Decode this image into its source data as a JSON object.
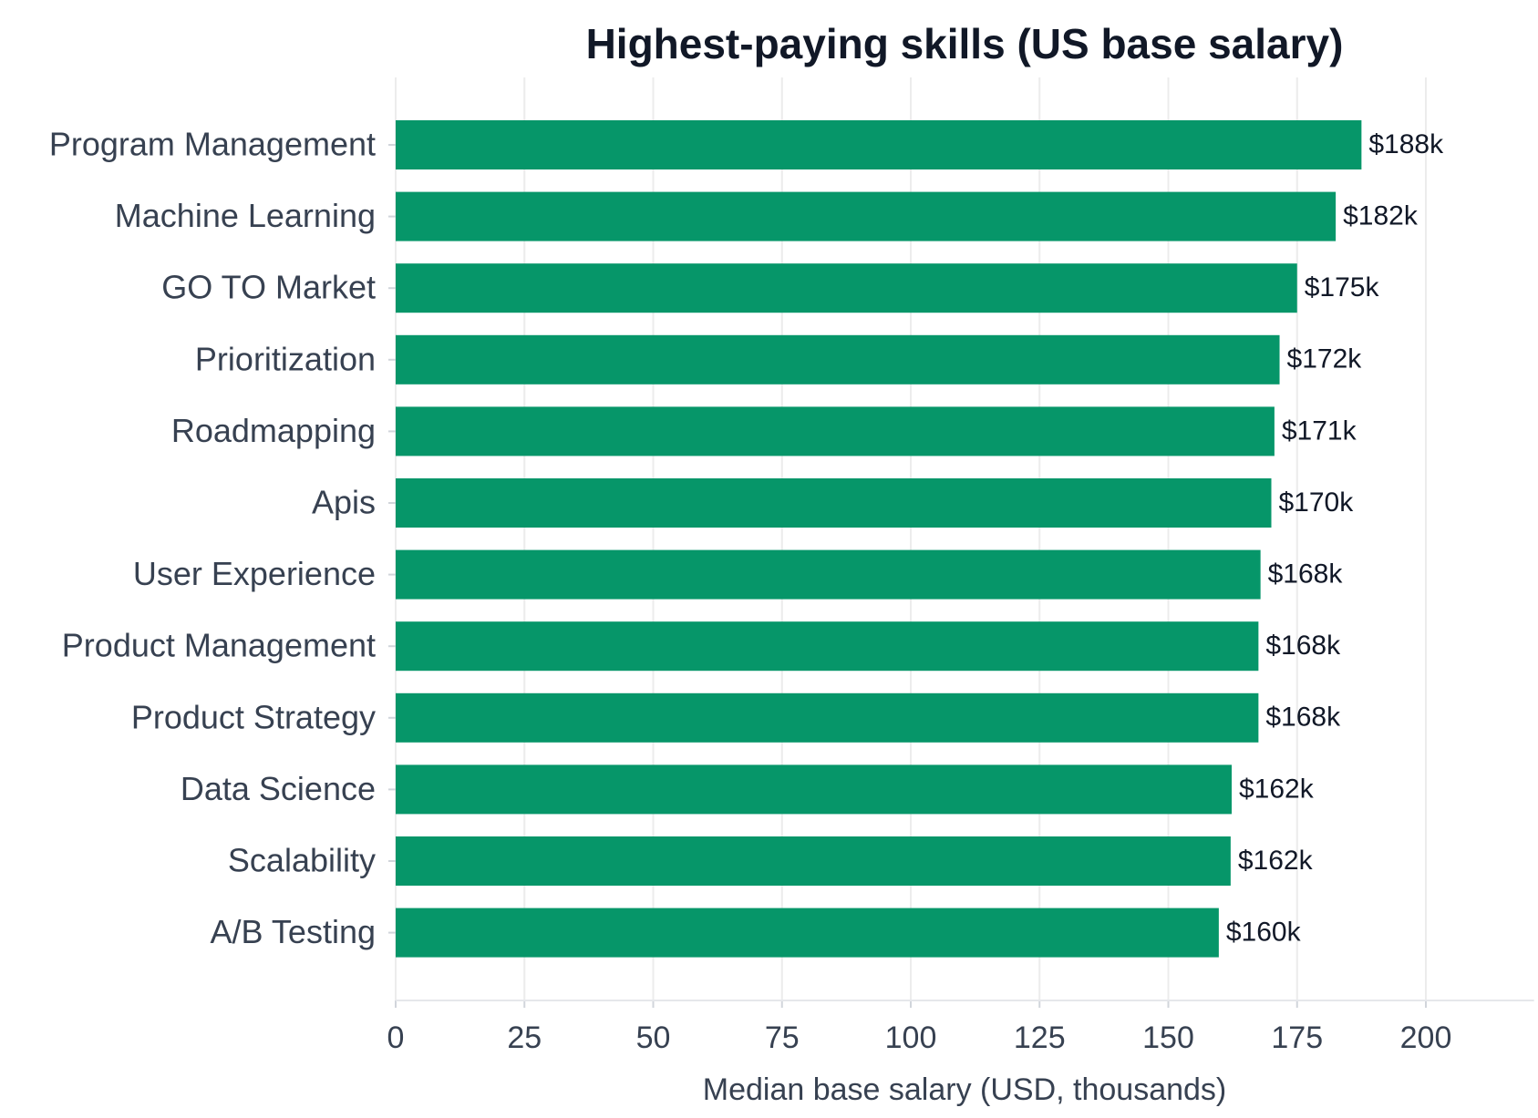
{
  "chart_data": {
    "type": "barh",
    "title": "Highest-paying skills (US base salary)",
    "x_label": "Median base salary (USD, thousands)",
    "categories": [
      "Program Management",
      "Machine Learning",
      "GO TO Market",
      "Prioritization",
      "Roadmapping",
      "Apis",
      "User Experience",
      "Product Management",
      "Product Strategy",
      "Data Science",
      "Scalability",
      "A/B Testing"
    ],
    "values": [
      187.5,
      182.5,
      175.0,
      171.6,
      170.6,
      170.0,
      167.9,
      167.5,
      167.5,
      162.3,
      162.1,
      159.8
    ],
    "value_labels": [
      "$188k",
      "$182k",
      "$175k",
      "$172k",
      "$171k",
      "$170k",
      "$168k",
      "$168k",
      "$168k",
      "$162k",
      "$162k",
      "$160k"
    ],
    "color": "#069669",
    "xlim": [
      0,
      221
    ],
    "xticks": [
      0,
      25,
      50,
      75,
      100,
      125,
      150,
      175,
      200
    ],
    "grid": true
  }
}
